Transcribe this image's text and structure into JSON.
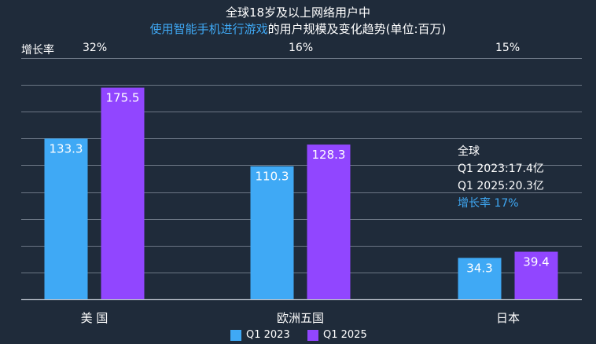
{
  "chart_data": {
    "type": "bar",
    "title_line1": "全球18岁及以上网络用户中",
    "title_line2_highlight": "使用智能手机进行游戏",
    "title_line2_rest": "的用户规模及变化趋势(单位:百万)",
    "categories": [
      "美 国",
      "欧洲五国",
      "日本"
    ],
    "series": [
      {
        "name": "Q1 2023",
        "values": [
          133.3,
          110.3,
          34.3
        ],
        "color": "#3fa9f5"
      },
      {
        "name": "Q1 2025",
        "values": [
          175.5,
          128.3,
          39.4
        ],
        "color": "#9146ff"
      }
    ],
    "growth_label": "增长率",
    "growth_rates": [
      "32%",
      "16%",
      "15%"
    ],
    "global_note": {
      "line1": "全球",
      "line2": "Q1 2023:17.4亿",
      "line3": "Q1 2025:20.3亿",
      "line4": "增长率 17%"
    },
    "ylim": [
      0,
      200
    ],
    "grid": true
  }
}
